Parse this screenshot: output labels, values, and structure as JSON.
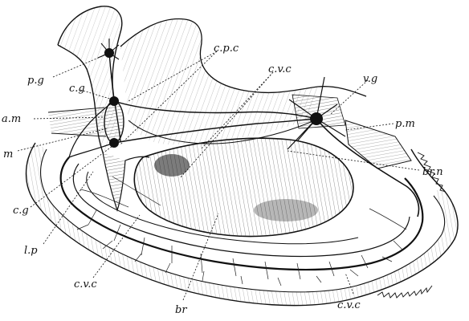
{
  "figure": {
    "labels": {
      "pg": "p.g",
      "cg_top": "c.g",
      "am": "a.m",
      "m": "m",
      "cg_bottom": "c.g",
      "lp": "l.p",
      "cvc_left": "c.v.c",
      "br": "br",
      "cvc_bottom": "c.v.c",
      "cpc": "c.p.c",
      "cvc_top": "c.v.c",
      "vg": "v.g",
      "pm": "p.m",
      "brn": "br.n"
    }
  }
}
